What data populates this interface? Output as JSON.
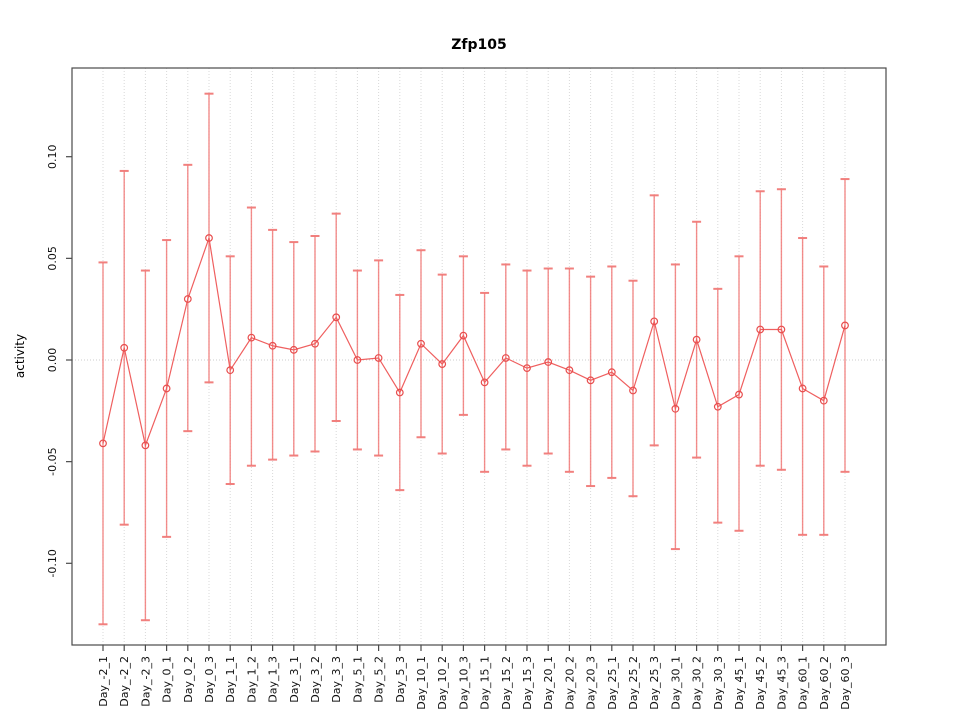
{
  "window": {
    "background": "#ffffff"
  },
  "chart_data": {
    "type": "line",
    "subtype": "points-with-error-bars",
    "title": "Zfp105",
    "xlabel": "",
    "ylabel": "activity",
    "legend": "none",
    "grid": "dotted vertical gridline at every category; dotted horizontal line at y=0",
    "marker": "open-circle",
    "ylim": [
      -0.14,
      0.144
    ],
    "yticks": [
      -0.1,
      -0.05,
      0.0,
      0.05,
      0.1
    ],
    "ytick_labels": [
      "-0.10",
      "-0.05",
      "0.00",
      "0.05",
      "0.10"
    ],
    "categories": [
      "Day_-2_1",
      "Day_-2_2",
      "Day_-2_3",
      "Day_0_1",
      "Day_0_2",
      "Day_0_3",
      "Day_1_1",
      "Day_1_2",
      "Day_1_3",
      "Day_3_1",
      "Day_3_2",
      "Day_3_3",
      "Day_5_1",
      "Day_5_2",
      "Day_5_3",
      "Day_10_1",
      "Day_10_2",
      "Day_10_3",
      "Day_15_1",
      "Day_15_2",
      "Day_15_3",
      "Day_20_1",
      "Day_20_2",
      "Day_20_3",
      "Day_25_1",
      "Day_25_2",
      "Day_25_3",
      "Day_30_1",
      "Day_30_2",
      "Day_30_3",
      "Day_45_1",
      "Day_45_2",
      "Day_45_3",
      "Day_60_1",
      "Day_60_2",
      "Day_60_3"
    ],
    "series": [
      {
        "name": "activity",
        "values": [
          -0.041,
          0.006,
          -0.042,
          -0.014,
          0.03,
          0.06,
          -0.005,
          0.011,
          0.007,
          0.005,
          0.008,
          0.021,
          0.0,
          0.001,
          -0.016,
          0.008,
          -0.002,
          0.012,
          -0.011,
          0.001,
          -0.004,
          -0.001,
          -0.005,
          -0.01,
          -0.006,
          -0.015,
          0.019,
          -0.024,
          0.01,
          -0.023,
          -0.017,
          0.015,
          0.015,
          -0.014,
          -0.02,
          0.017
        ],
        "error_upper": [
          0.048,
          0.093,
          0.044,
          0.059,
          0.096,
          0.131,
          0.051,
          0.075,
          0.064,
          0.058,
          0.061,
          0.072,
          0.044,
          0.049,
          0.032,
          0.054,
          0.042,
          0.051,
          0.033,
          0.047,
          0.044,
          0.045,
          0.045,
          0.041,
          0.046,
          0.039,
          0.081,
          0.047,
          0.068,
          0.035,
          0.051,
          0.083,
          0.084,
          0.06,
          0.046,
          0.089
        ],
        "error_lower": [
          -0.13,
          -0.081,
          -0.128,
          -0.087,
          -0.035,
          -0.011,
          -0.061,
          -0.052,
          -0.049,
          -0.047,
          -0.045,
          -0.03,
          -0.044,
          -0.047,
          -0.064,
          -0.038,
          -0.046,
          -0.027,
          -0.055,
          -0.044,
          -0.052,
          -0.046,
          -0.055,
          -0.062,
          -0.058,
          -0.067,
          -0.042,
          -0.093,
          -0.048,
          -0.08,
          -0.084,
          -0.052,
          -0.054,
          -0.086,
          -0.086,
          -0.055
        ]
      }
    ],
    "colors": {
      "series_line": "#ef5f5f",
      "error_bar": "#f17a78",
      "marker_stroke": "#e84d4d",
      "gridline": "#d8d8d8",
      "zero_line": "#cccccc",
      "axis_box": "#4a4a4a",
      "text": "#111111"
    }
  }
}
